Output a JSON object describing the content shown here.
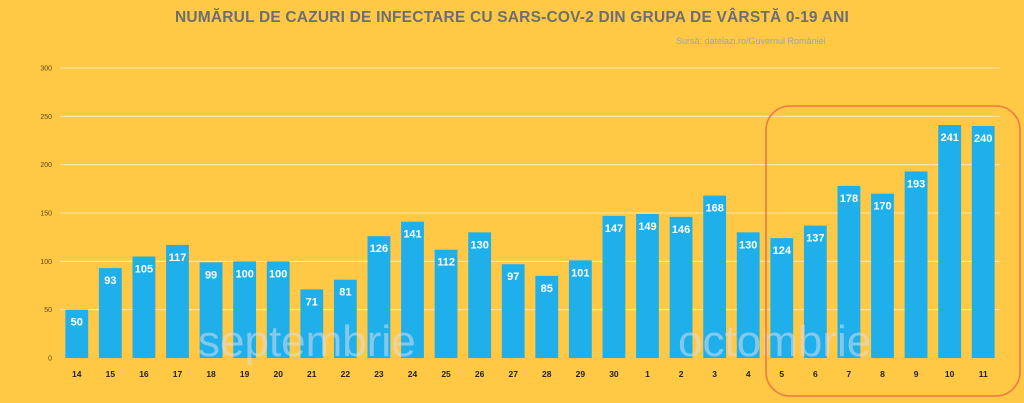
{
  "header": {
    "title": "NUMĂRUL DE CAZURI DE INFECTARE CU SARS-COV-2 DIN GRUPA DE VÂRSTĂ 0-19 ANI",
    "source": "Sursă: datelazi.ro/Guvernul României"
  },
  "watermarks": {
    "september": "septembrie",
    "october": "octombrie"
  },
  "colors": {
    "background": "#FFC845",
    "bar": "#1FB0EC",
    "highlight": "#F07846",
    "title": "#6E6E6E"
  },
  "chart_data": {
    "type": "bar",
    "title": "NUMĂRUL DE CAZURI DE INFECTARE CU SARS-COV-2 DIN GRUPA DE VÂRSTĂ 0-19 ANI",
    "xlabel": "",
    "ylabel": "",
    "categories": [
      "14",
      "15",
      "16",
      "17",
      "18",
      "19",
      "20",
      "21",
      "22",
      "23",
      "24",
      "25",
      "26",
      "27",
      "28",
      "29",
      "30",
      "1",
      "2",
      "3",
      "4",
      "5",
      "6",
      "7",
      "8",
      "9",
      "10",
      "11"
    ],
    "values": [
      50,
      93,
      105,
      117,
      99,
      100,
      100,
      71,
      81,
      126,
      141,
      112,
      130,
      97,
      85,
      101,
      147,
      149,
      146,
      168,
      130,
      124,
      137,
      178,
      170,
      193,
      241,
      240
    ],
    "ylim": [
      0,
      300
    ],
    "yticks": [
      0,
      50,
      100,
      150,
      200,
      250,
      300
    ],
    "grid": true,
    "legend": "none",
    "highlight_range": [
      "5",
      "11"
    ]
  }
}
